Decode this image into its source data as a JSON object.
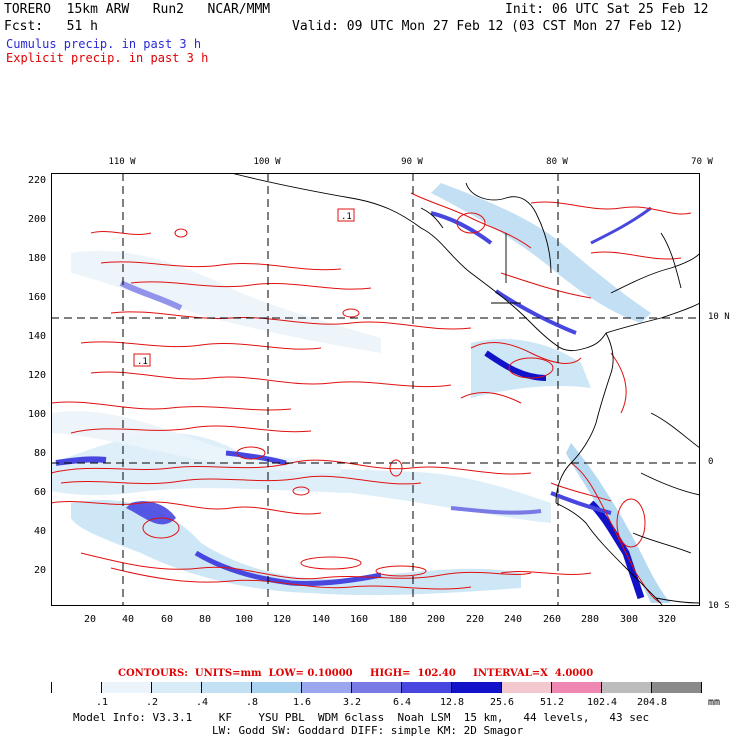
{
  "header": {
    "model": "TORERO  15km ARW   Run2   NCAR/MMM",
    "init": "Init: 06 UTC Sat 25 Feb 12",
    "fcst": "Fcst:   51 h",
    "valid": "Valid: 09 UTC Mon 27 Feb 12 (03 CST Mon 27 Feb 12)",
    "line_cumulus": "Cumulus precip. in past 3 h",
    "line_explicit": "Explicit precip. in past 3 h"
  },
  "colors": {
    "cumulus_text": "#2a2ad6",
    "explicit_text": "#e00000",
    "contour": "#e01010",
    "grid": "#000000"
  },
  "map": {
    "top_labels": [
      "110 W",
      "100 W",
      "90 W",
      "80 W",
      "70 W"
    ],
    "right_labels": [
      "10 N",
      "0",
      "10 S"
    ],
    "y_ticks": [
      "220",
      "200",
      "180",
      "160",
      "140",
      "120",
      "100",
      "80",
      "60",
      "40",
      "20"
    ],
    "x_ticks": [
      "20",
      "40",
      "60",
      "80",
      "100",
      "120",
      "140",
      "160",
      "180",
      "200",
      "220",
      "240",
      "260",
      "280",
      "300",
      "320"
    ],
    "contour_labels": [
      ".1",
      ".1"
    ]
  },
  "contours_info": {
    "text": "CONTOURS:  UNITS=mm  LOW= 0.10000     HIGH=  102.40     INTERVAL=X  4.0000"
  },
  "colorbar": {
    "colors": [
      "#ffffff",
      "#ebf4fb",
      "#d8ecf8",
      "#c2e1f5",
      "#a9d2f0",
      "#9aa6ee",
      "#7a7ae6",
      "#4747e0",
      "#1212c8",
      "#f4c8cf",
      "#ee88b2",
      "#bcbcbc",
      "#8a8a8a",
      "#d6a8ef"
    ],
    "values": [
      ".1",
      ".2",
      ".4",
      ".8",
      "1.6",
      "3.2",
      "6.4",
      "12.8",
      "25.6",
      "51.2",
      "102.4",
      "204.8"
    ],
    "unit": "mm"
  },
  "footer": {
    "line1": "Model Info: V3.3.1    KF    YSU PBL  WDM 6class  Noah LSM  15 km,   44 levels,   43 sec",
    "line2": "LW: Godd SW: Goddard DIFF: simple KM: 2D Smagor"
  }
}
